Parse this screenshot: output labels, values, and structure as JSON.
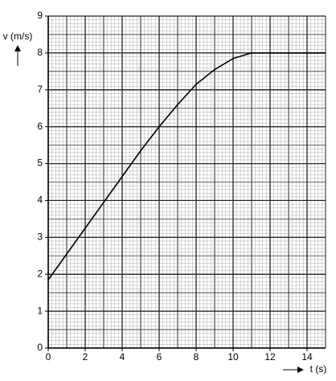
{
  "chart_data": {
    "type": "line",
    "y_label": "v (m/s)",
    "x_label": "t (s)",
    "x": [
      0,
      1,
      2,
      3,
      4,
      5,
      6,
      7,
      8,
      9,
      10,
      11,
      12,
      13,
      14,
      15
    ],
    "values": [
      1.85,
      2.55,
      3.25,
      3.95,
      4.65,
      5.35,
      6.0,
      6.6,
      7.15,
      7.55,
      7.85,
      8.0,
      8.0,
      8.0,
      8.0,
      8.0
    ],
    "color": "#000000",
    "xlim": [
      0,
      15
    ],
    "xticks": [
      0,
      2,
      4,
      6,
      8,
      10,
      12,
      14
    ],
    "ylim": [
      0,
      9
    ],
    "yticks": [
      0,
      1,
      2,
      3,
      4,
      5,
      6,
      7,
      8,
      9
    ],
    "grid": true
  }
}
